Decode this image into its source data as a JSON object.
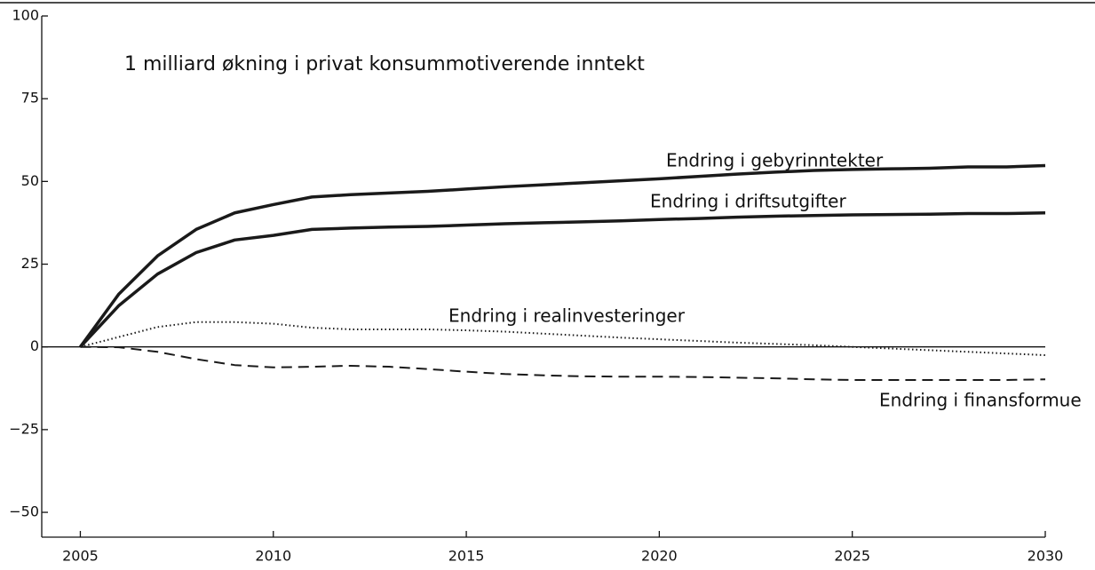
{
  "chart_data": {
    "type": "line",
    "title": "1 milliard økning i privat konsummotiverende inntekt",
    "x": [
      2005,
      2006,
      2007,
      2008,
      2009,
      2010,
      2011,
      2012,
      2013,
      2014,
      2015,
      2016,
      2017,
      2018,
      2019,
      2020,
      2021,
      2022,
      2023,
      2024,
      2025,
      2026,
      2027,
      2028,
      2029,
      2030
    ],
    "series": [
      {
        "name": "Endring i gebyrinntekter",
        "color": "#1a1a1a",
        "dash": "solid",
        "values": [
          0,
          16,
          27.5,
          35.5,
          40.5,
          43,
          45.3,
          46,
          46.5,
          47,
          47.7,
          48.4,
          49,
          49.6,
          50.2,
          50.8,
          51.5,
          52.2,
          52.8,
          53.3,
          53.6,
          53.8,
          54,
          54.4,
          54.4,
          54.8
        ]
      },
      {
        "name": "Endring i driftsutgifter",
        "color": "#1a1a1a",
        "dash": "solid",
        "values": [
          0,
          12.5,
          22,
          28.5,
          32.3,
          33.7,
          35.5,
          35.9,
          36.2,
          36.4,
          36.8,
          37.2,
          37.5,
          37.8,
          38.1,
          38.5,
          38.8,
          39.2,
          39.5,
          39.7,
          39.9,
          40,
          40.1,
          40.3,
          40.3,
          40.5
        ]
      },
      {
        "name": "Endring i realinvesteringer",
        "color": "#1a1a1a",
        "dash": "dotted",
        "values": [
          0,
          3,
          6,
          7.5,
          7.5,
          7,
          5.8,
          5.3,
          5.3,
          5.3,
          5,
          4.6,
          4,
          3.4,
          2.8,
          2.3,
          1.8,
          1.3,
          0.9,
          0.5,
          0,
          -0.5,
          -1,
          -1.5,
          -2,
          -2.5
        ]
      },
      {
        "name": "Endring i finansformue",
        "color": "#1a1a1a",
        "dash": "dashed",
        "values": [
          0,
          -0.1,
          -1.5,
          -3.7,
          -5.5,
          -6.2,
          -6,
          -5.7,
          -6,
          -6.7,
          -7.5,
          -8.2,
          -8.6,
          -8.9,
          -9,
          -9,
          -9.1,
          -9.3,
          -9.5,
          -9.8,
          -10,
          -10,
          -10,
          -10,
          -10,
          -9.8
        ]
      }
    ],
    "xlim": [
      2004,
      2030
    ],
    "xticks": [
      2005,
      2010,
      2015,
      2020,
      2025,
      2030
    ],
    "ylim": [
      -57.5,
      100
    ],
    "yticks": [
      {
        "value": -50,
        "label": "−50"
      },
      {
        "value": -25,
        "label": "−25"
      },
      0,
      25,
      50,
      75,
      100
    ]
  }
}
